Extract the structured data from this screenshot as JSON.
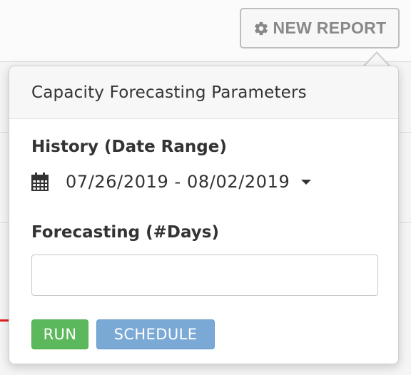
{
  "toolbar": {
    "new_report_label": "NEW REPORT",
    "new_report_icon": "gear-icon"
  },
  "popover": {
    "title": "Capacity Forecasting Parameters",
    "history": {
      "label": "History (Date Range)",
      "icon": "calendar-icon",
      "date_range": "07/26/2019 - 08/02/2019"
    },
    "forecasting": {
      "label": "Forecasting (#Days)",
      "value": "",
      "placeholder": ""
    },
    "buttons": {
      "run_label": "RUN",
      "schedule_label": "SCHEDULE"
    }
  },
  "colors": {
    "run_green": "#5cb85c",
    "schedule_blue": "#7aa9d6",
    "header_bg": "#f7f7f7"
  }
}
